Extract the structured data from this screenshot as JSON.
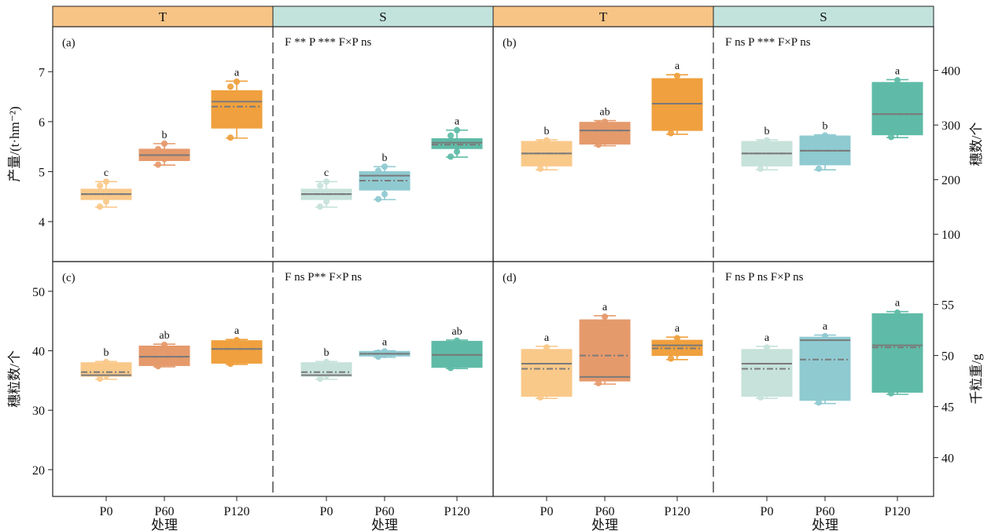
{
  "chart_data": [
    {
      "panel": "(a)",
      "type": "box",
      "ylabel": "产量/(t·hm⁻²)",
      "y_axis_side": "left",
      "ylim": [
        3.2,
        7.9
      ],
      "yticks": [
        4,
        5,
        6,
        7
      ],
      "stats_text": "F **  P ***  F×P ns",
      "groups": [
        {
          "name": "T",
          "categories": [
            "P0",
            "P60",
            "P120"
          ],
          "boxes": [
            {
              "q1": 4.44,
              "q3": 4.65,
              "median": 4.55,
              "mean": 4.55,
              "min": 4.29,
              "max": 4.8,
              "points": [
                4.3,
                4.4,
                4.55,
                4.72,
                4.8
              ],
              "letter": "c"
            },
            {
              "q1": 5.22,
              "q3": 5.45,
              "median": 5.33,
              "mean": 5.33,
              "min": 5.13,
              "max": 5.56,
              "points": [
                5.14,
                5.25,
                5.35,
                5.45,
                5.56
              ],
              "letter": "b"
            },
            {
              "q1": 5.87,
              "q3": 6.62,
              "median": 6.4,
              "mean": 6.3,
              "min": 5.67,
              "max": 6.81,
              "points": [
                5.68,
                5.95,
                6.35,
                6.7,
                6.8
              ],
              "letter": "a"
            }
          ]
        },
        {
          "name": "S",
          "categories": [
            "P0",
            "P60",
            "P120"
          ],
          "boxes": [
            {
              "q1": 4.44,
              "q3": 4.65,
              "median": 4.55,
              "mean": 4.55,
              "min": 4.29,
              "max": 4.8,
              "points": [
                4.3,
                4.4,
                4.55,
                4.72,
                4.8
              ],
              "letter": "c"
            },
            {
              "q1": 4.63,
              "q3": 5.0,
              "median": 4.92,
              "mean": 4.82,
              "min": 4.44,
              "max": 5.1,
              "points": [
                4.45,
                4.55,
                4.9,
                5.02,
                5.1
              ],
              "letter": "b"
            },
            {
              "q1": 5.46,
              "q3": 5.66,
              "median": 5.58,
              "mean": 5.54,
              "min": 5.29,
              "max": 5.83,
              "points": [
                5.3,
                5.4,
                5.6,
                5.72,
                5.83
              ],
              "letter": "a"
            }
          ]
        }
      ]
    },
    {
      "panel": "(b)",
      "type": "box",
      "ylabel": "穗数/个",
      "y_axis_side": "right",
      "ylim": [
        50,
        480
      ],
      "yticks": [
        100,
        200,
        300,
        400
      ],
      "stats_text": "F ns  P ***  F×P ns",
      "groups": [
        {
          "name": "T",
          "categories": [
            "P0",
            "P60",
            "P120"
          ],
          "boxes": [
            {
              "q1": 225,
              "q3": 270,
              "median": 248,
              "mean": 248,
              "min": 218,
              "max": 273,
              "points": [
                220,
                235,
                250,
                268,
                272
              ],
              "letter": "b"
            },
            {
              "q1": 265,
              "q3": 305,
              "median": 290,
              "mean": 290,
              "min": 262,
              "max": 308,
              "points": [
                264,
                275,
                292,
                303,
                306
              ],
              "letter": "ab"
            },
            {
              "q1": 290,
              "q3": 385,
              "median": 339,
              "mean": 339,
              "min": 283,
              "max": 392,
              "points": [
                285,
                300,
                340,
                380,
                390
              ],
              "letter": "a"
            }
          ]
        },
        {
          "name": "S",
          "categories": [
            "P0",
            "P60",
            "P120"
          ],
          "boxes": [
            {
              "q1": 225,
              "q3": 270,
              "median": 248,
              "mean": 248,
              "min": 218,
              "max": 273,
              "points": [
                220,
                235,
                250,
                268,
                272
              ],
              "letter": "b"
            },
            {
              "q1": 227,
              "q3": 280,
              "median": 253,
              "mean": 253,
              "min": 218,
              "max": 282,
              "points": [
                220,
                235,
                255,
                275,
                281
              ],
              "letter": "b"
            },
            {
              "q1": 282,
              "q3": 378,
              "median": 320,
              "mean": 320,
              "min": 277,
              "max": 383,
              "points": [
                278,
                295,
                320,
                370,
                382
              ],
              "letter": "a"
            }
          ]
        }
      ]
    },
    {
      "panel": "(c)",
      "type": "box",
      "ylabel": "穗粒数/个",
      "y_axis_side": "left",
      "ylim": [
        15.5,
        55
      ],
      "yticks": [
        20,
        30,
        40,
        50
      ],
      "stats_text": "F ns P** F×P ns",
      "groups": [
        {
          "name": "T",
          "categories": [
            "P0",
            "P60",
            "P120"
          ],
          "boxes": [
            {
              "q1": 35.7,
              "q3": 38.0,
              "median": 35.9,
              "mean": 36.4,
              "min": 35.2,
              "max": 38.2,
              "points": [
                35.3,
                35.8,
                36.5,
                37.5,
                38.1
              ],
              "letter": "b"
            },
            {
              "q1": 37.5,
              "q3": 40.8,
              "median": 39.0,
              "mean": 39.0,
              "min": 37.3,
              "max": 41.1,
              "points": [
                37.4,
                38.2,
                39.0,
                40.2,
                41.0
              ],
              "letter": "ab"
            },
            {
              "q1": 37.9,
              "q3": 41.7,
              "median": 40.3,
              "mean": 40.3,
              "min": 37.7,
              "max": 41.9,
              "points": [
                37.8,
                39.0,
                40.3,
                41.3,
                41.8
              ],
              "letter": "a"
            }
          ]
        },
        {
          "name": "S",
          "categories": [
            "P0",
            "P60",
            "P120"
          ],
          "boxes": [
            {
              "q1": 35.7,
              "q3": 38.0,
              "median": 35.9,
              "mean": 36.4,
              "min": 35.2,
              "max": 38.2,
              "points": [
                35.3,
                35.8,
                36.5,
                37.5,
                38.1
              ],
              "letter": "b"
            },
            {
              "q1": 39.1,
              "q3": 39.9,
              "median": 39.5,
              "mean": 39.5,
              "min": 38.9,
              "max": 40.0,
              "points": [
                39.0,
                39.3,
                39.5,
                39.7,
                39.9
              ],
              "letter": "a"
            },
            {
              "q1": 37.2,
              "q3": 41.6,
              "median": 39.3,
              "mean": 39.3,
              "min": 37.0,
              "max": 41.8,
              "points": [
                37.1,
                38.2,
                39.3,
                40.8,
                41.7
              ],
              "letter": "ab"
            }
          ]
        }
      ]
    },
    {
      "panel": "(d)",
      "type": "box",
      "ylabel": "千粒重/g",
      "y_axis_side": "right",
      "ylim": [
        36.2,
        59.2
      ],
      "yticks": [
        40,
        45,
        50,
        55
      ],
      "stats_text": "F ns  P ns  F×P ns",
      "groups": [
        {
          "name": "T",
          "categories": [
            "P0",
            "P60",
            "P120"
          ],
          "boxes": [
            {
              "q1": 46.0,
              "q3": 50.6,
              "median": 49.2,
              "mean": 48.7,
              "min": 45.8,
              "max": 50.9,
              "points": [
                45.9,
                47.0,
                48.7,
                50.2,
                50.8
              ],
              "letter": "a"
            },
            {
              "q1": 47.5,
              "q3": 53.5,
              "median": 47.9,
              "mean": 50.0,
              "min": 47.2,
              "max": 53.9,
              "points": [
                47.3,
                48.5,
                50.0,
                52.5,
                53.8
              ],
              "letter": "a"
            },
            {
              "q1": 50.0,
              "q3": 51.5,
              "median": 51.0,
              "mean": 50.7,
              "min": 49.6,
              "max": 51.8,
              "points": [
                49.7,
                50.2,
                50.7,
                51.2,
                51.7
              ],
              "letter": "a"
            }
          ]
        },
        {
          "name": "S",
          "categories": [
            "P0",
            "P60",
            "P120"
          ],
          "boxes": [
            {
              "q1": 46.0,
              "q3": 50.6,
              "median": 49.2,
              "mean": 48.7,
              "min": 45.8,
              "max": 50.9,
              "points": [
                45.9,
                47.0,
                48.7,
                50.2,
                50.8
              ],
              "letter": "a"
            },
            {
              "q1": 45.6,
              "q3": 51.8,
              "median": 51.5,
              "mean": 49.6,
              "min": 45.3,
              "max": 52.0,
              "points": [
                45.4,
                47.0,
                49.6,
                51.0,
                51.9
              ],
              "letter": "a"
            },
            {
              "q1": 46.4,
              "q3": 54.1,
              "median": 51.0,
              "mean": 50.8,
              "min": 46.2,
              "max": 54.3,
              "points": [
                46.3,
                48.0,
                50.8,
                53.5,
                54.2
              ],
              "letter": "a"
            }
          ]
        }
      ]
    }
  ],
  "x_axis_label": "处理",
  "treatment_headers": [
    "T",
    "S",
    "T",
    "S"
  ],
  "colors": {
    "T": [
      "#f9c98a",
      "#e59a6c",
      "#f0a03e"
    ],
    "S": [
      "#c6e2da",
      "#8fcad1",
      "#5fbba7"
    ],
    "header_T": "#f7c486",
    "header_S": "#c2e3dc",
    "median_line": "#7a7a7a",
    "mean_line": "#7a7a7a"
  }
}
